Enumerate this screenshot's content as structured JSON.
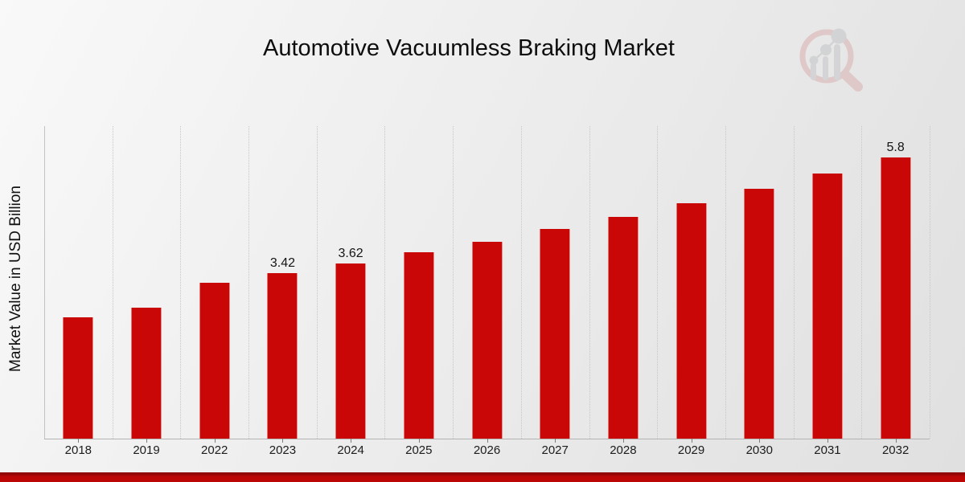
{
  "title": "Automotive Vacuumless Braking Market",
  "y_axis_label": "Market Value in USD Billion",
  "colors": {
    "bar": "#c90707",
    "accent_strip": "#bd0707",
    "gridline": "#c6c6c6",
    "axis_line": "#b3b3b3",
    "text": "#141414",
    "watermark_pink": "#d9abab",
    "watermark_gray": "#bfc0c4"
  },
  "chart_data": {
    "type": "bar",
    "title": "Automotive Vacuumless Braking Market",
    "xlabel": "",
    "ylabel": "Market Value in USD Billion",
    "unit": "USD Billion",
    "categories": [
      "2018",
      "2019",
      "2022",
      "2023",
      "2024",
      "2025",
      "2026",
      "2027",
      "2028",
      "2029",
      "2030",
      "2031",
      "2032"
    ],
    "values": [
      2.5,
      2.71,
      3.22,
      3.42,
      3.62,
      3.84,
      4.07,
      4.32,
      4.58,
      4.86,
      5.16,
      5.47,
      5.8
    ],
    "bar_labels": [
      "",
      "",
      "",
      "3.42",
      "3.62",
      "",
      "",
      "",
      "",
      "",
      "",
      "",
      "5.8"
    ],
    "bar_color": "#c90707",
    "ylim": [
      0,
      6.45
    ],
    "grid": "vertical dotted lines at category boundaries",
    "legend": "none"
  }
}
